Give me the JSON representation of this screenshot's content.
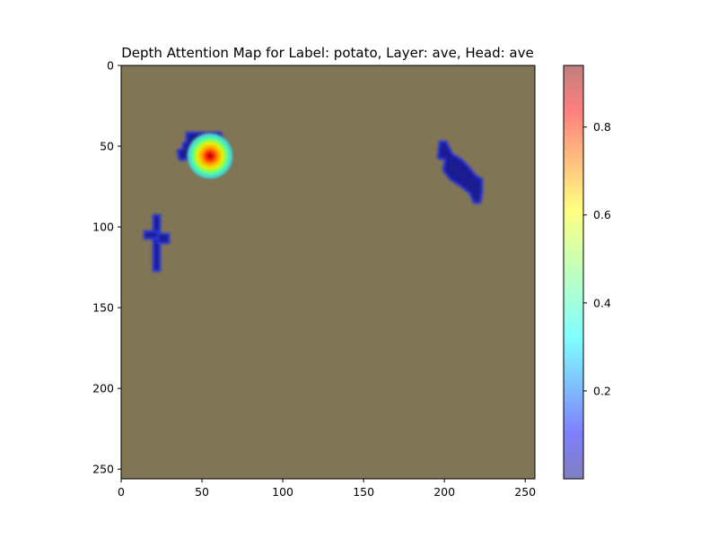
{
  "chart_data": {
    "type": "heatmap",
    "title": "Depth Attention Map for Label: potato, Layer: ave, Head: ave",
    "xlabel": "",
    "ylabel": "",
    "xlim": [
      0,
      256
    ],
    "ylim": [
      256,
      0
    ],
    "x_ticks": [
      0,
      50,
      100,
      150,
      200,
      250
    ],
    "y_ticks": [
      0,
      50,
      100,
      150,
      200,
      250
    ],
    "grid": false,
    "background_color": "#807555",
    "colorbar": {
      "colormap": "jet",
      "alpha": 0.5,
      "range": [
        0.0,
        0.94
      ],
      "ticks": [
        0.2,
        0.4,
        0.6,
        0.8
      ]
    },
    "regions": [
      {
        "label_location": "cross-shaped blob",
        "x_center": 22,
        "y_center": 105,
        "value": 0.02
      },
      {
        "label_location": "upper-left blob",
        "x_center": 48,
        "y_center": 50,
        "value": 0.03
      },
      {
        "label_location": "hotspot",
        "x_center": 55,
        "y_center": 56,
        "peak_value": 0.94
      },
      {
        "label_location": "diagonal streak",
        "x_center": 210,
        "y_center": 68,
        "value": 0.02
      }
    ]
  }
}
